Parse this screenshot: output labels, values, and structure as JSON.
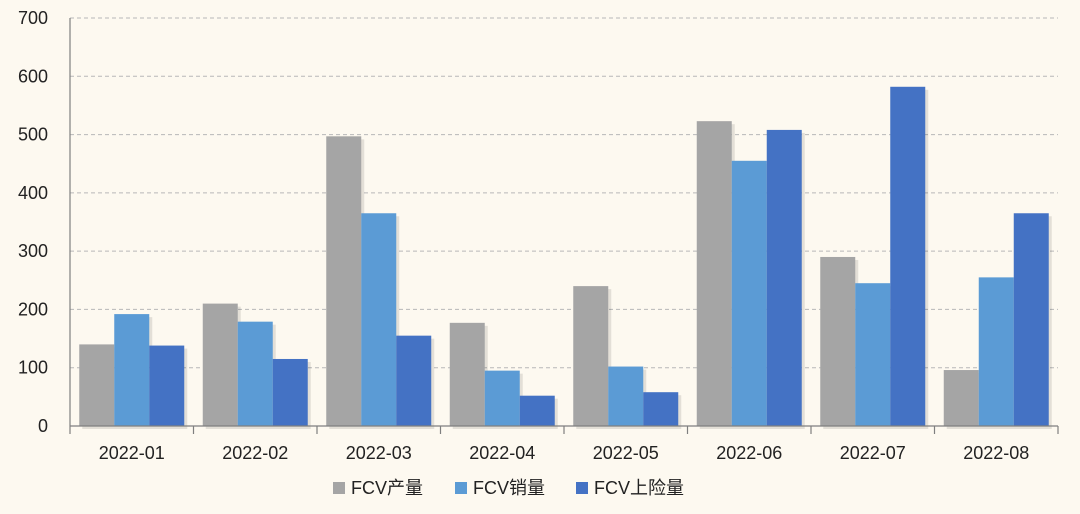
{
  "chart_data": {
    "type": "bar",
    "title": "",
    "xlabel": "",
    "ylabel": "",
    "ylim": [
      0,
      700
    ],
    "yticks": [
      0,
      100,
      200,
      300,
      400,
      500,
      600,
      700
    ],
    "grid": true,
    "legend_position": "bottom",
    "categories": [
      "2022-01",
      "2022-02",
      "2022-03",
      "2022-04",
      "2022-05",
      "2022-06",
      "2022-07",
      "2022-08"
    ],
    "series": [
      {
        "name": "FCV产量",
        "color": "#a5a5a5",
        "values": [
          140,
          210,
          497,
          177,
          240,
          523,
          290,
          96
        ]
      },
      {
        "name": "FCV销量",
        "color": "#5b9bd5",
        "values": [
          192,
          179,
          365,
          95,
          102,
          455,
          245,
          255
        ]
      },
      {
        "name": "FCV上险量",
        "color": "#4472c4",
        "values": [
          138,
          115,
          155,
          52,
          58,
          508,
          582,
          365
        ]
      }
    ]
  }
}
